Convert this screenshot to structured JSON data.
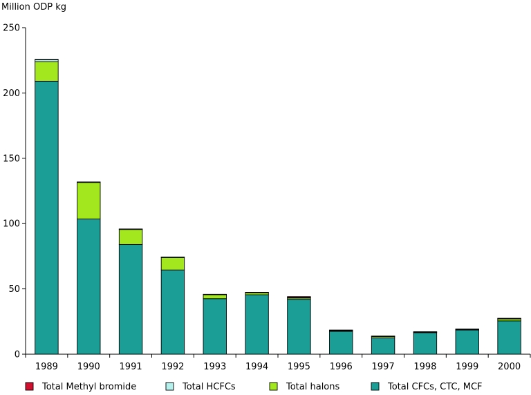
{
  "chart_data": {
    "type": "bar",
    "stacked": true,
    "title": "",
    "ylabel": "Million ODP kg",
    "xlabel": "",
    "categories": [
      "1989",
      "1990",
      "1991",
      "1992",
      "1993",
      "1994",
      "1995",
      "1996",
      "1997",
      "1998",
      "1999",
      "2000"
    ],
    "ylim": [
      0,
      250
    ],
    "yticks": [
      0,
      50,
      100,
      150,
      200,
      250
    ],
    "grid": false,
    "legend_position": "bottom",
    "series": [
      {
        "name": "Total CFCs, CTC, MCF",
        "color": "#1a9e96",
        "values": [
          209,
          103.5,
          84,
          64.5,
          42.5,
          45.5,
          42,
          17.5,
          12.5,
          16.5,
          18.5,
          25.5
        ]
      },
      {
        "name": "Total halons",
        "color": "#a3e81e",
        "values": [
          15,
          28,
          11.5,
          9.5,
          3,
          1.5,
          1,
          0.5,
          1,
          0.3,
          0.3,
          1.5
        ]
      },
      {
        "name": "Total HCFCs",
        "color": "#b5f0ec",
        "values": [
          1.5,
          0.3,
          0.3,
          0.3,
          0.3,
          0.3,
          0.5,
          0.3,
          0.3,
          0.3,
          0.3,
          0.3
        ]
      },
      {
        "name": "Total Methyl bromide",
        "color": "#d0102e",
        "values": [
          0.3,
          0.1,
          0.1,
          0.1,
          0.1,
          0.1,
          0.6,
          0.2,
          0.1,
          0.1,
          0.2,
          0.2
        ]
      }
    ],
    "legend_order": [
      "Total Methyl bromide",
      "Total HCFCs",
      "Total halons",
      "Total CFCs, CTC, MCF"
    ]
  }
}
